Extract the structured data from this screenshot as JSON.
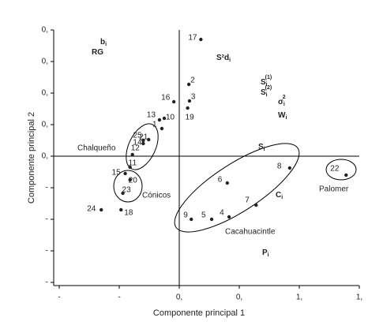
{
  "chart_data": {
    "type": "scatter",
    "x_label": "Componente principal 1",
    "y_label": "Componente principal 2",
    "xlim": [
      -1,
      1.5
    ],
    "ylim": [
      -0.8,
      0.8
    ],
    "xticks": [
      {
        "value": -1,
        "label": "-"
      },
      {
        "value": -0.5,
        "label": "-"
      },
      {
        "value": 0,
        "label": "0,"
      },
      {
        "value": 0.5,
        "label": "0,"
      },
      {
        "value": 1,
        "label": "1,"
      },
      {
        "value": 1.5,
        "label": "1,"
      }
    ],
    "yticks": [
      {
        "value": 0.8,
        "label": "0,"
      },
      {
        "value": 0.6,
        "label": "0,"
      },
      {
        "value": 0.4,
        "label": "0,"
      },
      {
        "value": 0.2,
        "label": "0,"
      },
      {
        "value": 0,
        "label": "0,"
      },
      {
        "value": -0.2,
        "label": "-"
      },
      {
        "value": -0.4,
        "label": "-"
      },
      {
        "value": -0.6,
        "label": "-"
      },
      {
        "value": -0.8,
        "label": "-"
      }
    ],
    "color": "#222222",
    "point_labels": [
      "17",
      "2",
      "3",
      "19",
      "16",
      "13",
      "10",
      "1",
      "25",
      "14",
      "21",
      "12",
      "11",
      "15",
      "20",
      "23",
      "24",
      "18",
      "6",
      "8",
      "22",
      "7",
      "9",
      "5",
      "4"
    ],
    "x": [
      0.18,
      0.08,
      0.085,
      0.07,
      -0.045,
      -0.165,
      -0.125,
      -0.145,
      -0.3,
      -0.3,
      -0.255,
      -0.39,
      -0.41,
      -0.45,
      -0.41,
      -0.47,
      -0.65,
      -0.485,
      0.4,
      0.92,
      1.39,
      0.64,
      0.1,
      0.27,
      0.415
    ],
    "values": [
      0.74,
      0.455,
      0.35,
      0.305,
      0.345,
      0.23,
      0.24,
      0.175,
      0.1,
      0.08,
      0.105,
      0.01,
      -0.07,
      -0.11,
      -0.15,
      -0.235,
      -0.34,
      -0.34,
      -0.17,
      -0.075,
      -0.12,
      -0.31,
      -0.4,
      -0.4,
      -0.385
    ],
    "groups": [
      "Chalqueño",
      "Cónicos",
      "Cacahuacintle",
      "Palomer"
    ],
    "variables": [
      {
        "base": "b",
        "sub": "i"
      },
      {
        "base": "RG"
      },
      {
        "base": "S²d",
        "sub": "i"
      },
      {
        "base": "S",
        "sub": "i",
        "sup": "(1)"
      },
      {
        "base": "S",
        "sub": "i",
        "sup": "(2)"
      },
      {
        "base": "σ",
        "sub": "i",
        "sup": "2"
      },
      {
        "base": "W",
        "sub": "i"
      },
      {
        "base": "S",
        "sub": "i"
      },
      {
        "base": "C",
        "sub": "i"
      },
      {
        "base": "P",
        "sub": "i"
      }
    ]
  }
}
